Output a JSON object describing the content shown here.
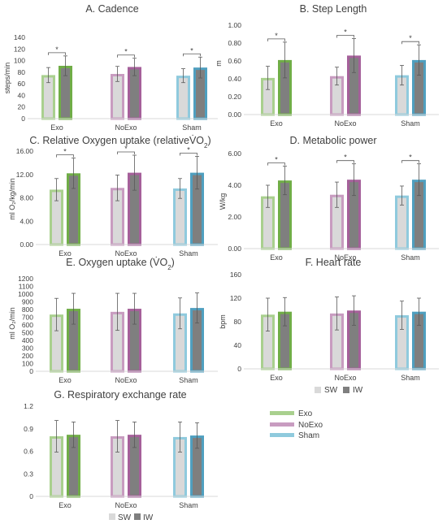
{
  "colors": {
    "Exo": "#70ad47",
    "Exo_light": "#a9d08e",
    "NoExo": "#a5609a",
    "NoExo_light": "#c89cc0",
    "Sham": "#4f9fbf",
    "Sham_light": "#8fcadd",
    "SW_fill": "#d9d9d9",
    "IW_fill": "#7f7f7f",
    "axis_text": "#404040",
    "grid": "#d9d9d9"
  },
  "chart_data": [
    {
      "type": "bar",
      "title": "A. Cadence",
      "ylabel": "steps/min",
      "categories": [
        "Exo",
        "NoExo",
        "Sham"
      ],
      "ylim": [
        0,
        140
      ],
      "yticks": [
        "0",
        "20",
        "40",
        "60",
        "80",
        "100",
        "120",
        "140"
      ],
      "series": [
        {
          "name": "SW",
          "values": [
            75,
            77,
            74
          ],
          "err": [
            13,
            13,
            12
          ]
        },
        {
          "name": "IW",
          "values": [
            91,
            89,
            88
          ],
          "err": [
            17,
            15,
            18
          ]
        }
      ],
      "significance": [
        "*",
        "*",
        "*"
      ]
    },
    {
      "type": "bar",
      "title": "B. Step Length",
      "ylabel": "m",
      "categories": [
        "Exo",
        "NoExo",
        "Sham"
      ],
      "ylim": [
        0,
        1.0
      ],
      "yticks": [
        "0.00",
        "0.20",
        "0.40",
        "0.60",
        "0.80",
        "1.00"
      ],
      "series": [
        {
          "name": "SW",
          "values": [
            0.41,
            0.43,
            0.44
          ],
          "err": [
            0.13,
            0.1,
            0.11
          ]
        },
        {
          "name": "IW",
          "values": [
            0.61,
            0.66,
            0.61
          ],
          "err": [
            0.2,
            0.19,
            0.17
          ]
        }
      ],
      "significance": [
        "*",
        "*",
        "*"
      ]
    },
    {
      "type": "bar",
      "title": "C. Relative Oxygen uptake (relativeV̇O",
      "title_sub": "2",
      "title_end": ")",
      "ylabel": "ml O₂/kg/min",
      "categories": [
        "Exo",
        "NoExo",
        "Sham"
      ],
      "ylim": [
        0,
        16
      ],
      "yticks": [
        "0.00",
        "4.00",
        "8.00",
        "12.00",
        "16.00"
      ],
      "series": [
        {
          "name": "SW",
          "values": [
            9.4,
            9.7,
            9.6
          ],
          "err": [
            1.9,
            2.2,
            1.7
          ]
        },
        {
          "name": "IW",
          "values": [
            12.2,
            12.3,
            12.3
          ],
          "err": [
            2.6,
            3.0,
            2.8
          ]
        }
      ],
      "significance": [
        "*",
        "*",
        "*"
      ]
    },
    {
      "type": "bar",
      "title": "D. Metabolic power",
      "ylabel": "W/kg",
      "categories": [
        "Exo",
        "NoExo",
        "Sham"
      ],
      "ylim": [
        0,
        6
      ],
      "yticks": [
        "0.00",
        "2.00",
        "4.00",
        "6.00"
      ],
      "series": [
        {
          "name": "SW",
          "values": [
            3.3,
            3.4,
            3.35
          ],
          "err": [
            0.7,
            0.8,
            0.6
          ]
        },
        {
          "name": "IW",
          "values": [
            4.3,
            4.35,
            4.35
          ],
          "err": [
            0.9,
            1.0,
            1.0
          ]
        }
      ],
      "significance": [
        "*",
        "*",
        "*"
      ]
    },
    {
      "type": "bar",
      "title": "E. Oxygen uptake (V̇O",
      "title_sub": "2",
      "title_end": ")",
      "ylabel": "ml O₂/min",
      "categories": [
        "Exo",
        "NoExo",
        "Sham"
      ],
      "ylim": [
        0,
        1200
      ],
      "yticks": [
        "0",
        "100",
        "200",
        "300",
        "400",
        "500",
        "600",
        "700",
        "800",
        "900",
        "1000",
        "1100",
        "1200"
      ],
      "series": [
        {
          "name": "SW",
          "values": [
            735,
            770,
            750
          ],
          "err": [
            210,
            240,
            200
          ]
        },
        {
          "name": "IW",
          "values": [
            810,
            810,
            820
          ],
          "err": [
            200,
            200,
            195
          ]
        }
      ],
      "significance": [
        "",
        "",
        ""
      ]
    },
    {
      "type": "bar",
      "title": "F. Heart rate",
      "ylabel": "bpm",
      "categories": [
        "Exo",
        "NoExo",
        "Sham"
      ],
      "ylim": [
        0,
        160
      ],
      "yticks": [
        "0",
        "40",
        "80",
        "120",
        "160"
      ],
      "series": [
        {
          "name": "SW",
          "values": [
            92,
            94,
            91
          ],
          "err": [
            28,
            28,
            24
          ]
        },
        {
          "name": "IW",
          "values": [
            97,
            99,
            97
          ],
          "err": [
            24,
            25,
            23
          ]
        }
      ],
      "significance": [
        "",
        "",
        ""
      ]
    },
    {
      "type": "bar",
      "title": "G. Respiratory exchange rate",
      "ylabel": "",
      "categories": [
        "Exo",
        "NoExo",
        "Sham"
      ],
      "ylim": [
        0,
        1.2
      ],
      "yticks": [
        "0",
        "0.3",
        "0.6",
        "0.9",
        "1.2"
      ],
      "series": [
        {
          "name": "SW",
          "values": [
            0.8,
            0.8,
            0.79
          ],
          "err": [
            0.21,
            0.21,
            0.2
          ]
        },
        {
          "name": "IW",
          "values": [
            0.82,
            0.82,
            0.81
          ],
          "err": [
            0.17,
            0.17,
            0.17
          ]
        }
      ],
      "significance": [
        "",
        "",
        ""
      ]
    }
  ],
  "legends": {
    "swiw_F": [
      "SW",
      "IW"
    ],
    "swiw_G": [
      "SW",
      "IW"
    ],
    "groups": [
      "Exo",
      "NoExo",
      "Sham"
    ]
  }
}
